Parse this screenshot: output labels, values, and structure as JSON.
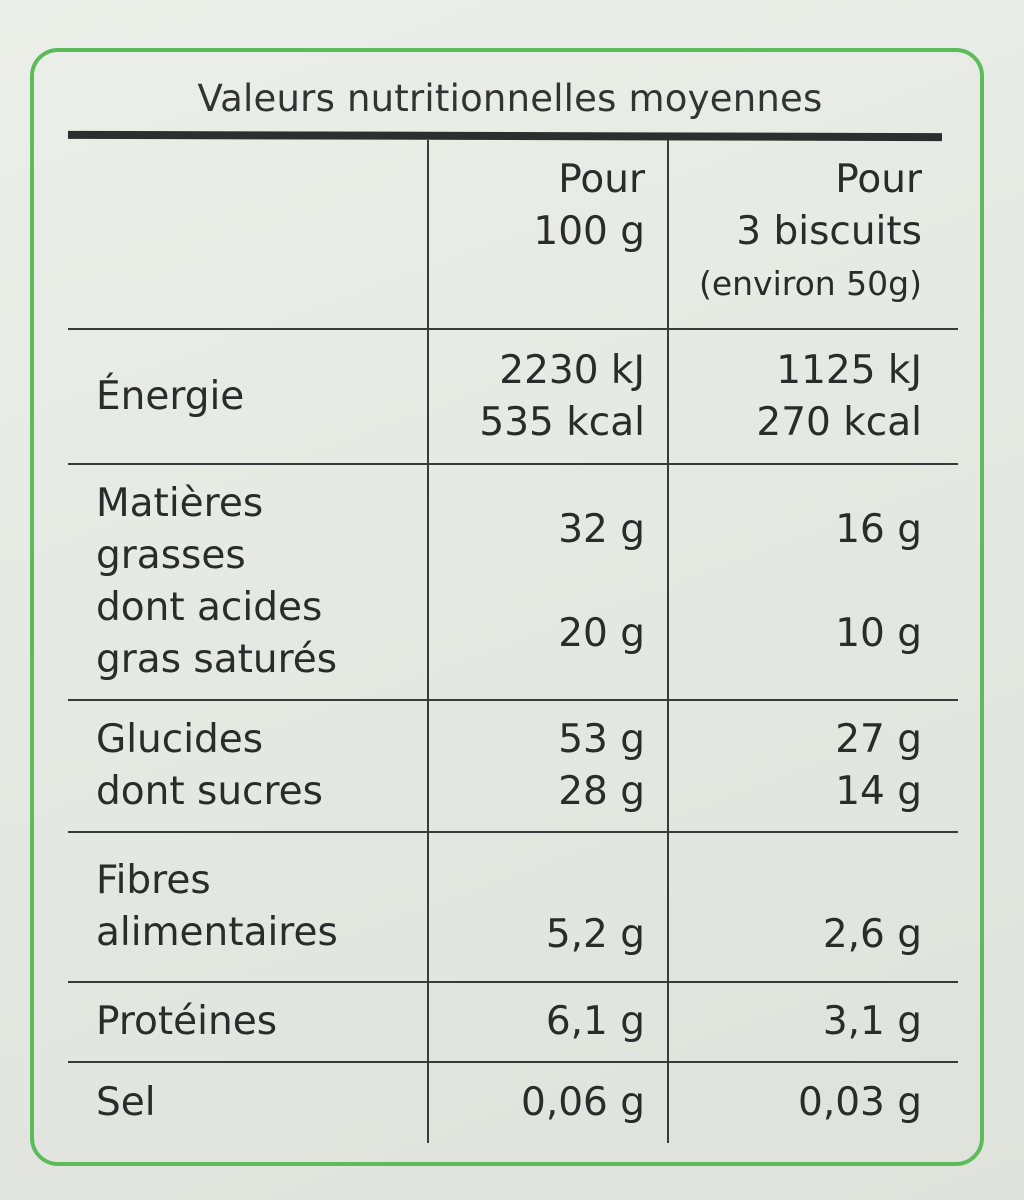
{
  "title": "Valeurs nutritionnelles moyennes",
  "header": {
    "col1": [
      "Pour",
      "100 g"
    ],
    "col2": [
      "Pour",
      "3 biscuits",
      "(environ 50g)"
    ]
  },
  "rows": [
    {
      "label": [
        "Énergie"
      ],
      "v1": [
        "2230 kJ",
        "535 kcal"
      ],
      "v2": [
        "1125 kJ",
        "270 kcal"
      ]
    },
    {
      "label": [
        "Matières",
        "grasses",
        "dont acides",
        "gras saturés"
      ],
      "v1": [
        "32 g",
        "20 g"
      ],
      "v2": [
        "16 g",
        "10 g"
      ]
    },
    {
      "label": [
        "Glucides",
        "dont sucres"
      ],
      "v1": [
        "53 g",
        "28 g"
      ],
      "v2": [
        "27 g",
        "14 g"
      ]
    },
    {
      "label": [
        "Fibres",
        "alimentaires"
      ],
      "v1": [
        "5,2 g"
      ],
      "v2": [
        "2,6 g"
      ]
    },
    {
      "label": [
        "Protéines"
      ],
      "v1": [
        "6,1 g"
      ],
      "v2": [
        "3,1 g"
      ]
    },
    {
      "label": [
        "Sel"
      ],
      "v1": [
        "0,06 g"
      ],
      "v2": [
        "0,03 g"
      ]
    }
  ],
  "colors": {
    "frame": "#5cbc5a",
    "text": "#2b2b2b"
  }
}
